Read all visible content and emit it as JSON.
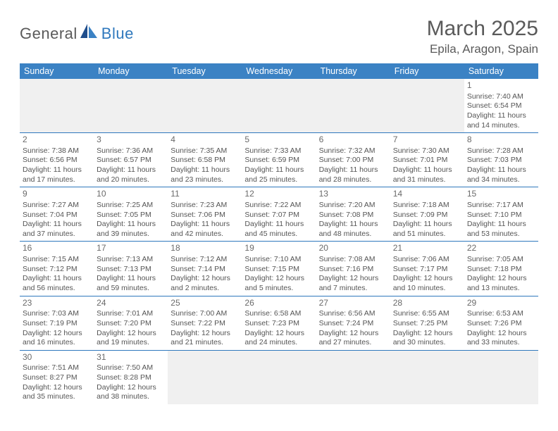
{
  "brand": {
    "name_a": "General",
    "name_b": "Blue"
  },
  "title": "March 2025",
  "location": "Epila, Aragon, Spain",
  "colors": {
    "header_bg": "#3b82c4",
    "header_text": "#ffffff",
    "cell_border": "#2f78bd",
    "blank_bg": "#f0f0f0",
    "text": "#555555",
    "title_text": "#5a5a5a"
  },
  "weekdays": [
    "Sunday",
    "Monday",
    "Tuesday",
    "Wednesday",
    "Thursday",
    "Friday",
    "Saturday"
  ],
  "weeks": [
    [
      {
        "blank": true
      },
      {
        "blank": true
      },
      {
        "blank": true
      },
      {
        "blank": true
      },
      {
        "blank": true
      },
      {
        "blank": true
      },
      {
        "day": "1",
        "sunrise": "Sunrise: 7:40 AM",
        "sunset": "Sunset: 6:54 PM",
        "dl1": "Daylight: 11 hours",
        "dl2": "and 14 minutes."
      }
    ],
    [
      {
        "day": "2",
        "sunrise": "Sunrise: 7:38 AM",
        "sunset": "Sunset: 6:56 PM",
        "dl1": "Daylight: 11 hours",
        "dl2": "and 17 minutes."
      },
      {
        "day": "3",
        "sunrise": "Sunrise: 7:36 AM",
        "sunset": "Sunset: 6:57 PM",
        "dl1": "Daylight: 11 hours",
        "dl2": "and 20 minutes."
      },
      {
        "day": "4",
        "sunrise": "Sunrise: 7:35 AM",
        "sunset": "Sunset: 6:58 PM",
        "dl1": "Daylight: 11 hours",
        "dl2": "and 23 minutes."
      },
      {
        "day": "5",
        "sunrise": "Sunrise: 7:33 AM",
        "sunset": "Sunset: 6:59 PM",
        "dl1": "Daylight: 11 hours",
        "dl2": "and 25 minutes."
      },
      {
        "day": "6",
        "sunrise": "Sunrise: 7:32 AM",
        "sunset": "Sunset: 7:00 PM",
        "dl1": "Daylight: 11 hours",
        "dl2": "and 28 minutes."
      },
      {
        "day": "7",
        "sunrise": "Sunrise: 7:30 AM",
        "sunset": "Sunset: 7:01 PM",
        "dl1": "Daylight: 11 hours",
        "dl2": "and 31 minutes."
      },
      {
        "day": "8",
        "sunrise": "Sunrise: 7:28 AM",
        "sunset": "Sunset: 7:03 PM",
        "dl1": "Daylight: 11 hours",
        "dl2": "and 34 minutes."
      }
    ],
    [
      {
        "day": "9",
        "sunrise": "Sunrise: 7:27 AM",
        "sunset": "Sunset: 7:04 PM",
        "dl1": "Daylight: 11 hours",
        "dl2": "and 37 minutes."
      },
      {
        "day": "10",
        "sunrise": "Sunrise: 7:25 AM",
        "sunset": "Sunset: 7:05 PM",
        "dl1": "Daylight: 11 hours",
        "dl2": "and 39 minutes."
      },
      {
        "day": "11",
        "sunrise": "Sunrise: 7:23 AM",
        "sunset": "Sunset: 7:06 PM",
        "dl1": "Daylight: 11 hours",
        "dl2": "and 42 minutes."
      },
      {
        "day": "12",
        "sunrise": "Sunrise: 7:22 AM",
        "sunset": "Sunset: 7:07 PM",
        "dl1": "Daylight: 11 hours",
        "dl2": "and 45 minutes."
      },
      {
        "day": "13",
        "sunrise": "Sunrise: 7:20 AM",
        "sunset": "Sunset: 7:08 PM",
        "dl1": "Daylight: 11 hours",
        "dl2": "and 48 minutes."
      },
      {
        "day": "14",
        "sunrise": "Sunrise: 7:18 AM",
        "sunset": "Sunset: 7:09 PM",
        "dl1": "Daylight: 11 hours",
        "dl2": "and 51 minutes."
      },
      {
        "day": "15",
        "sunrise": "Sunrise: 7:17 AM",
        "sunset": "Sunset: 7:10 PM",
        "dl1": "Daylight: 11 hours",
        "dl2": "and 53 minutes."
      }
    ],
    [
      {
        "day": "16",
        "sunrise": "Sunrise: 7:15 AM",
        "sunset": "Sunset: 7:12 PM",
        "dl1": "Daylight: 11 hours",
        "dl2": "and 56 minutes."
      },
      {
        "day": "17",
        "sunrise": "Sunrise: 7:13 AM",
        "sunset": "Sunset: 7:13 PM",
        "dl1": "Daylight: 11 hours",
        "dl2": "and 59 minutes."
      },
      {
        "day": "18",
        "sunrise": "Sunrise: 7:12 AM",
        "sunset": "Sunset: 7:14 PM",
        "dl1": "Daylight: 12 hours",
        "dl2": "and 2 minutes."
      },
      {
        "day": "19",
        "sunrise": "Sunrise: 7:10 AM",
        "sunset": "Sunset: 7:15 PM",
        "dl1": "Daylight: 12 hours",
        "dl2": "and 5 minutes."
      },
      {
        "day": "20",
        "sunrise": "Sunrise: 7:08 AM",
        "sunset": "Sunset: 7:16 PM",
        "dl1": "Daylight: 12 hours",
        "dl2": "and 7 minutes."
      },
      {
        "day": "21",
        "sunrise": "Sunrise: 7:06 AM",
        "sunset": "Sunset: 7:17 PM",
        "dl1": "Daylight: 12 hours",
        "dl2": "and 10 minutes."
      },
      {
        "day": "22",
        "sunrise": "Sunrise: 7:05 AM",
        "sunset": "Sunset: 7:18 PM",
        "dl1": "Daylight: 12 hours",
        "dl2": "and 13 minutes."
      }
    ],
    [
      {
        "day": "23",
        "sunrise": "Sunrise: 7:03 AM",
        "sunset": "Sunset: 7:19 PM",
        "dl1": "Daylight: 12 hours",
        "dl2": "and 16 minutes."
      },
      {
        "day": "24",
        "sunrise": "Sunrise: 7:01 AM",
        "sunset": "Sunset: 7:20 PM",
        "dl1": "Daylight: 12 hours",
        "dl2": "and 19 minutes."
      },
      {
        "day": "25",
        "sunrise": "Sunrise: 7:00 AM",
        "sunset": "Sunset: 7:22 PM",
        "dl1": "Daylight: 12 hours",
        "dl2": "and 21 minutes."
      },
      {
        "day": "26",
        "sunrise": "Sunrise: 6:58 AM",
        "sunset": "Sunset: 7:23 PM",
        "dl1": "Daylight: 12 hours",
        "dl2": "and 24 minutes."
      },
      {
        "day": "27",
        "sunrise": "Sunrise: 6:56 AM",
        "sunset": "Sunset: 7:24 PM",
        "dl1": "Daylight: 12 hours",
        "dl2": "and 27 minutes."
      },
      {
        "day": "28",
        "sunrise": "Sunrise: 6:55 AM",
        "sunset": "Sunset: 7:25 PM",
        "dl1": "Daylight: 12 hours",
        "dl2": "and 30 minutes."
      },
      {
        "day": "29",
        "sunrise": "Sunrise: 6:53 AM",
        "sunset": "Sunset: 7:26 PM",
        "dl1": "Daylight: 12 hours",
        "dl2": "and 33 minutes."
      }
    ],
    [
      {
        "day": "30",
        "sunrise": "Sunrise: 7:51 AM",
        "sunset": "Sunset: 8:27 PM",
        "dl1": "Daylight: 12 hours",
        "dl2": "and 35 minutes."
      },
      {
        "day": "31",
        "sunrise": "Sunrise: 7:50 AM",
        "sunset": "Sunset: 8:28 PM",
        "dl1": "Daylight: 12 hours",
        "dl2": "and 38 minutes."
      },
      {
        "blank": true
      },
      {
        "blank": true
      },
      {
        "blank": true
      },
      {
        "blank": true
      },
      {
        "blank": true
      }
    ]
  ]
}
